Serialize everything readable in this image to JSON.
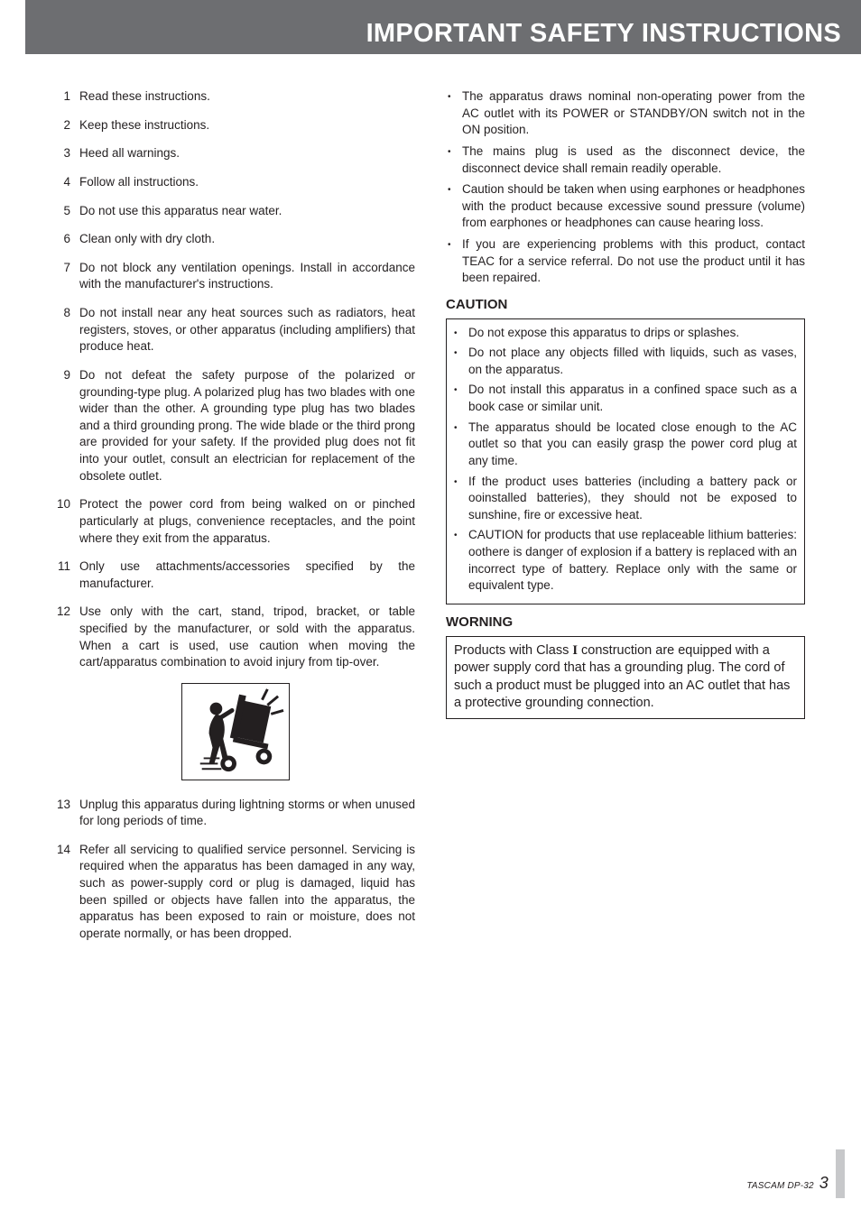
{
  "header": {
    "title": "IMPORTANT SAFETY INSTRUCTIONS"
  },
  "numbered": [
    "Read these instructions.",
    "Keep these instructions.",
    "Heed all warnings.",
    "Follow all instructions.",
    "Do not use this apparatus near water.",
    "Clean only with dry cloth.",
    "Do not block any ventilation openings. Install in accordance with the manufacturer's instructions.",
    "Do not install near any heat sources such as radiators, heat registers, stoves, or other apparatus (including amplifiers) that produce heat.",
    "Do not defeat the safety purpose of the polarized or grounding-type plug. A polarized plug has two blades with one wider than the other. A grounding type plug has two blades and a third grounding prong. The wide blade or the third prong are provided for your safety. If the provided plug does not fit into your outlet, consult an electrician for replacement of the obsolete outlet.",
    "Protect the power cord from being walked on or pinched particularly at plugs, convenience receptacles, and the point where they exit from the apparatus.",
    "Only use attachments/accessories specified by the manufacturer.",
    "Use only with the cart, stand, tripod, bracket, or table specified by the manufacturer, or sold with the apparatus. When a cart is used, use caution when moving the cart/apparatus combination to avoid injury from tip-over.",
    "Unplug this apparatus during lightning storms or when unused for long periods of time.",
    "Refer all servicing to qualified service personnel. Servicing is required when the apparatus has been damaged in any way, such as power-supply cord or plug is damaged, liquid has been spilled or objects have fallen into the apparatus, the apparatus has been exposed to rain or moisture, does not operate normally, or has been dropped."
  ],
  "right_bullets": [
    "The apparatus draws nominal non-operating power from the AC outlet with its POWER or STANDBY/ON switch not in the ON position.",
    "The mains plug is used as the disconnect device, the disconnect device shall remain readily operable.",
    "Caution should be taken when using earphones or headphones with the product because excessive sound pressure (volume) from earphones or headphones can cause hearing loss.",
    "If you are experiencing problems with this product, contact TEAC for a service referral. Do not use the product until it has been repaired."
  ],
  "caution": {
    "heading": "CAUTION",
    "items": [
      "Do not expose this apparatus to drips or splashes.",
      "Do not place any objects filled with liquids, such as vases, on the apparatus.",
      "Do not install this apparatus in a confined space such as a book case or similar unit.",
      "The apparatus should be located close enough to the AC outlet so that you can easily grasp the power cord plug at any time.",
      "If the product uses batteries (including a battery pack or ooinstalled batteries), they should not be exposed to sunshine, fire or excessive heat.",
      "CAUTION for products that use replaceable lithium batteries: oothere is danger of explosion if a battery is replaced with an incorrect type of battery. Replace only with the same or equivalent type."
    ]
  },
  "warning": {
    "heading": "WORNING",
    "text_before": "Products with Class ",
    "class_symbol": "I",
    "text_after": " construction are equipped with a power supply cord that has a grounding plug. The cord of such a product must be plugged into an AC outlet that has a protective grounding connection."
  },
  "footer": {
    "model": "TASCAM DP-32",
    "page": "3"
  },
  "cart_icon": {
    "width": 120,
    "height": 108,
    "stroke": "#231f20",
    "fill": "#231f20"
  }
}
